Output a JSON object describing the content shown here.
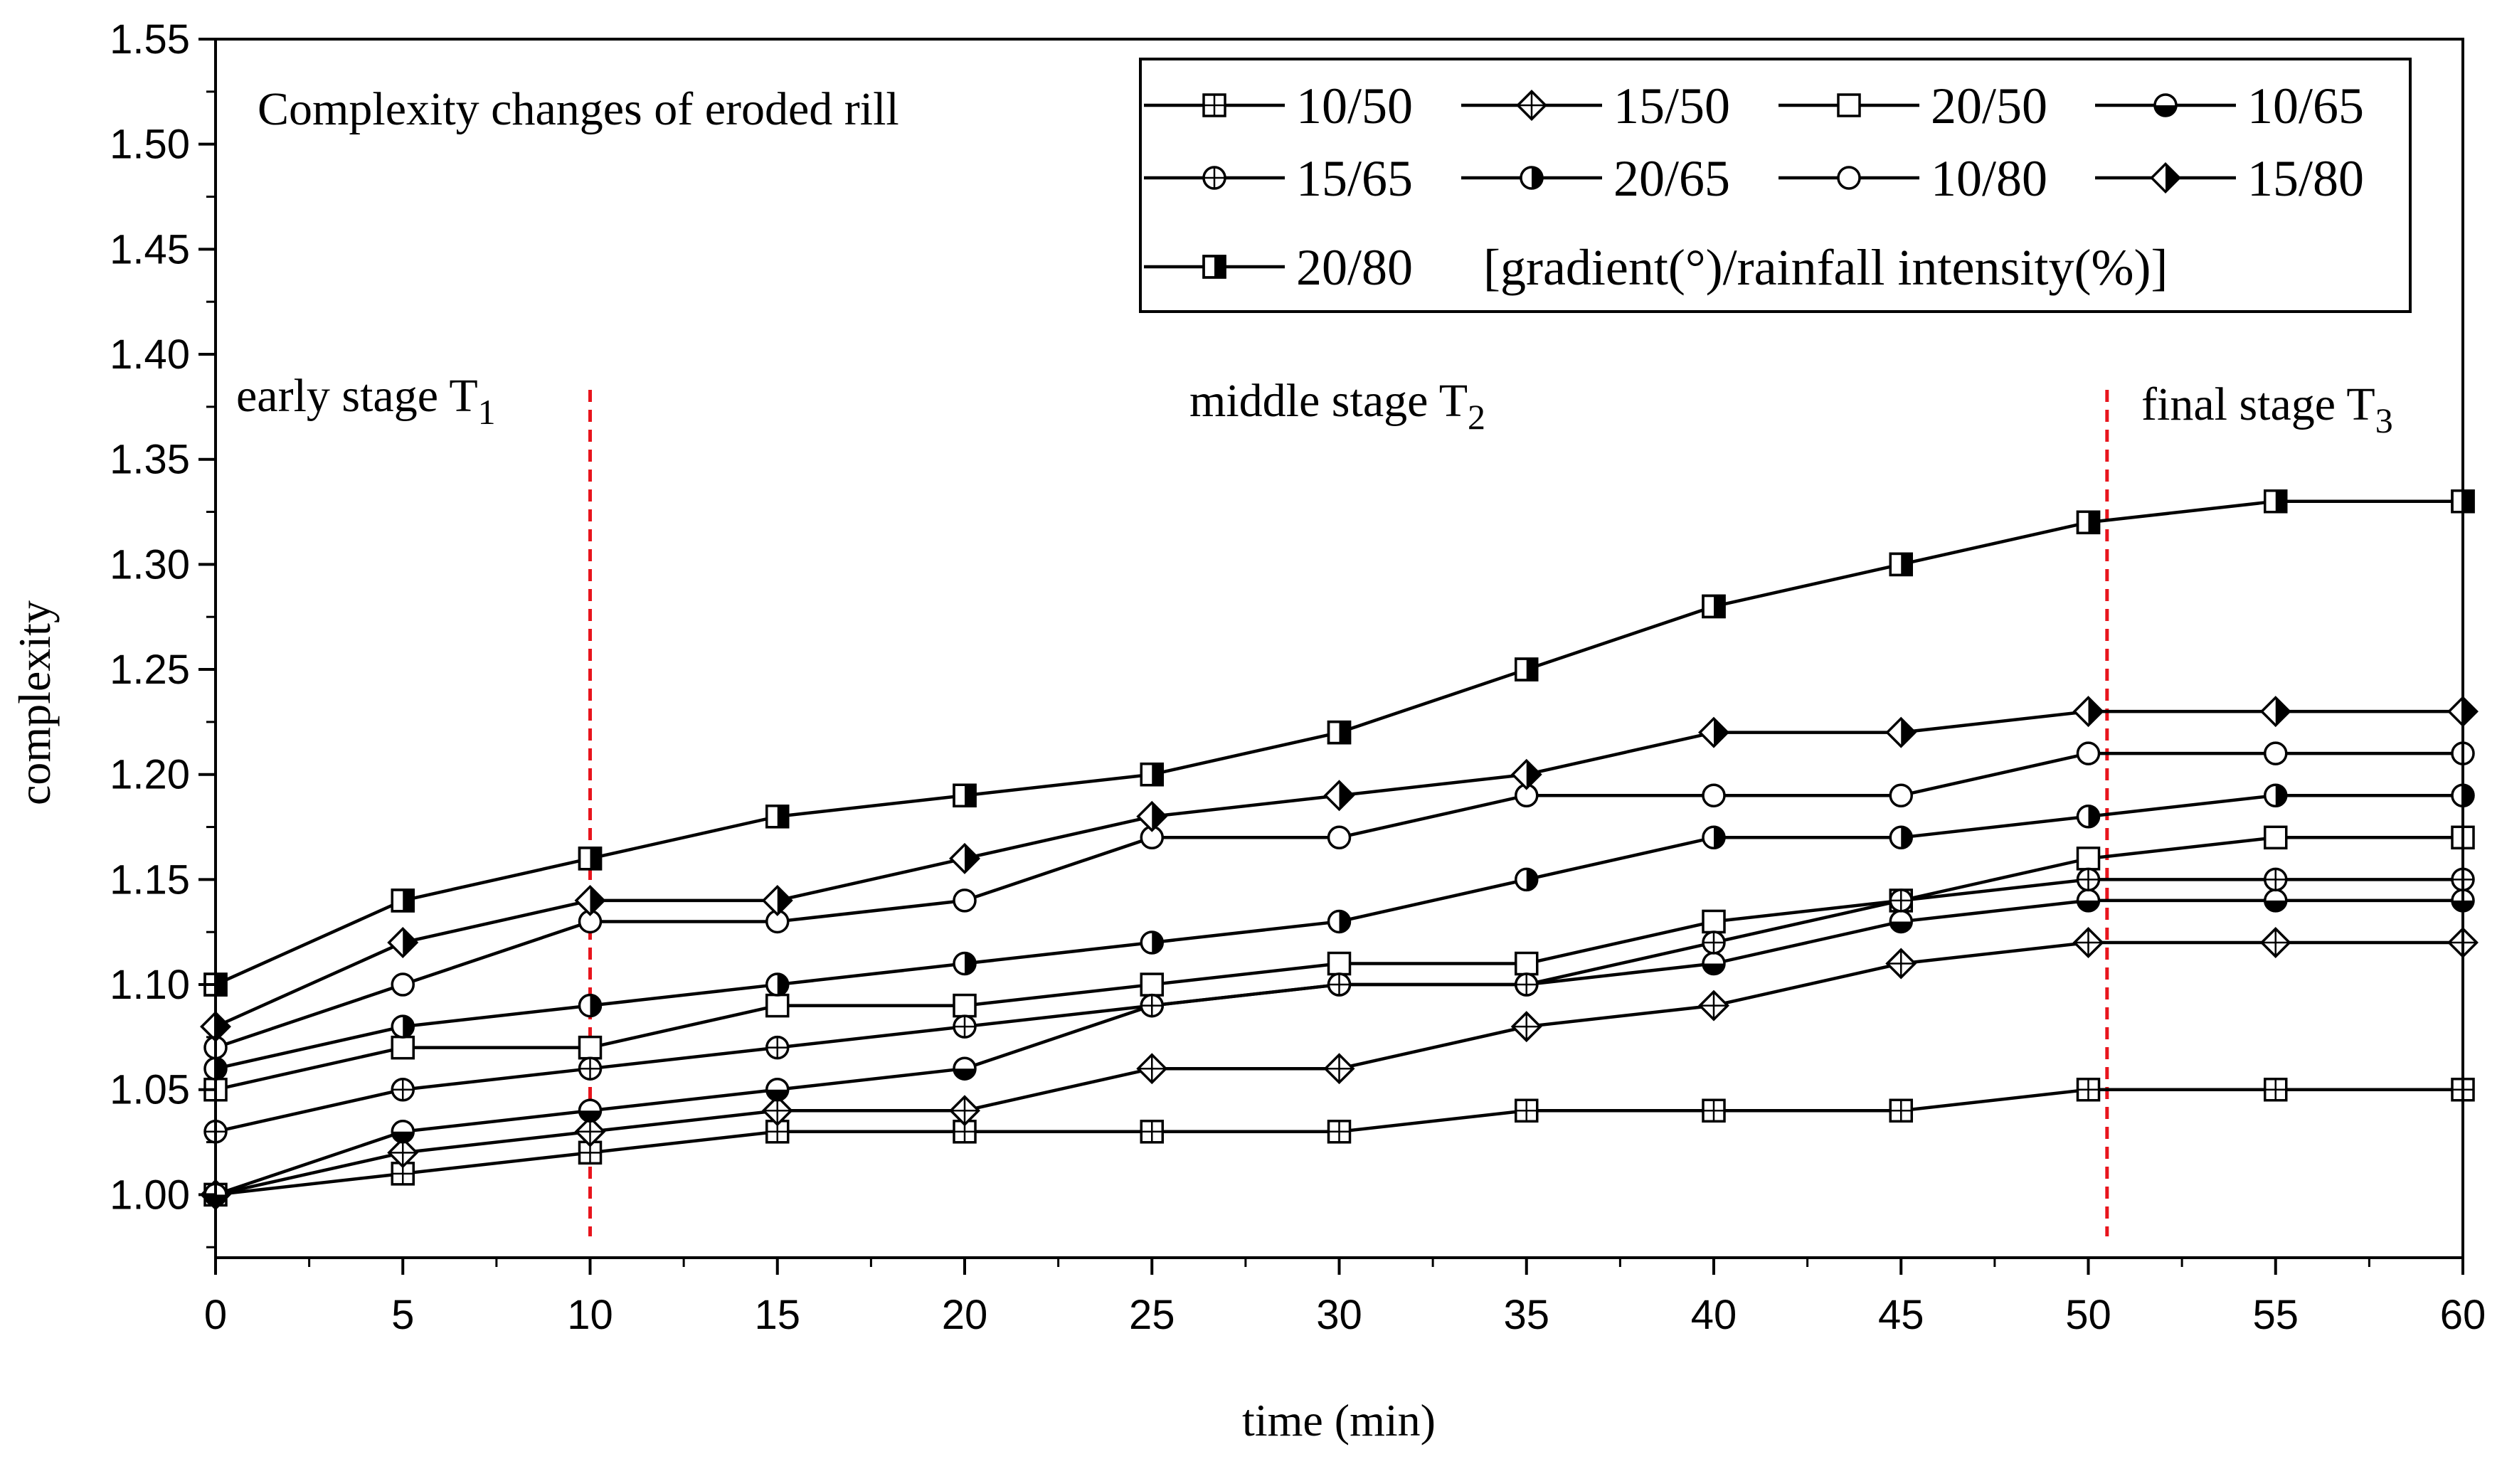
{
  "chart_data": {
    "type": "line",
    "title": "Complexity changes of eroded rill",
    "xlabel": "time (min)",
    "ylabel": "complexity",
    "xlim": [
      0,
      60
    ],
    "ylim": [
      0.97,
      1.55
    ],
    "x": [
      0,
      5,
      10,
      15,
      20,
      25,
      30,
      35,
      40,
      45,
      50,
      55,
      60
    ],
    "x_ticks": [
      0,
      5,
      10,
      15,
      20,
      25,
      30,
      35,
      40,
      45,
      50,
      55,
      60
    ],
    "x_tick_labels": [
      "0",
      "5",
      "10",
      "15",
      "20",
      "25",
      "30",
      "35",
      "40",
      "45",
      "50",
      "55",
      "60"
    ],
    "y_ticks": [
      1.0,
      1.05,
      1.1,
      1.15,
      1.2,
      1.25,
      1.3,
      1.35,
      1.4,
      1.45,
      1.5,
      1.55
    ],
    "y_tick_labels": [
      "1.00",
      "1.05",
      "1.10",
      "1.15",
      "1.20",
      "1.25",
      "1.30",
      "1.35",
      "1.40",
      "1.45",
      "1.50",
      "1.55"
    ],
    "legend_unit": "[gradient(°)/rainfall intensity(%)]",
    "stage_dividers": [
      10,
      50.5
    ],
    "divider_color": "#e8141c",
    "line_color": "#000000",
    "stages": [
      {
        "label": "early stage T",
        "subscript": "1"
      },
      {
        "label": "middle stage T",
        "subscript": "2"
      },
      {
        "label": "final stage T",
        "subscript": "3"
      }
    ],
    "series": [
      {
        "name": "10/50",
        "marker": "square-plus",
        "values": [
          1.0,
          1.01,
          1.02,
          1.03,
          1.03,
          1.03,
          1.03,
          1.04,
          1.04,
          1.04,
          1.05,
          1.05,
          1.05
        ]
      },
      {
        "name": "15/50",
        "marker": "diamond-plus",
        "values": [
          1.0,
          1.02,
          1.03,
          1.04,
          1.04,
          1.06,
          1.06,
          1.08,
          1.09,
          1.11,
          1.12,
          1.12,
          1.12
        ]
      },
      {
        "name": "20/50",
        "marker": "square-open",
        "values": [
          1.05,
          1.07,
          1.07,
          1.09,
          1.09,
          1.1,
          1.11,
          1.11,
          1.13,
          1.14,
          1.16,
          1.17,
          1.17
        ]
      },
      {
        "name": "10/65",
        "marker": "circle-half-bottom",
        "values": [
          1.0,
          1.03,
          1.04,
          1.05,
          1.06,
          1.09,
          1.1,
          1.1,
          1.11,
          1.13,
          1.14,
          1.14,
          1.14
        ]
      },
      {
        "name": "15/65",
        "marker": "circle-plus",
        "values": [
          1.03,
          1.05,
          1.06,
          1.07,
          1.08,
          1.09,
          1.1,
          1.1,
          1.12,
          1.14,
          1.15,
          1.15,
          1.15
        ]
      },
      {
        "name": "20/65",
        "marker": "circle-half-right",
        "values": [
          1.06,
          1.08,
          1.09,
          1.1,
          1.11,
          1.12,
          1.13,
          1.15,
          1.17,
          1.17,
          1.18,
          1.19,
          1.19
        ]
      },
      {
        "name": "10/80",
        "marker": "circle-open",
        "values": [
          1.07,
          1.1,
          1.13,
          1.13,
          1.14,
          1.17,
          1.17,
          1.19,
          1.19,
          1.19,
          1.21,
          1.21,
          1.21
        ]
      },
      {
        "name": "15/80",
        "marker": "diamond-half-right",
        "values": [
          1.08,
          1.12,
          1.14,
          1.14,
          1.16,
          1.18,
          1.19,
          1.2,
          1.22,
          1.22,
          1.23,
          1.23,
          1.23
        ]
      },
      {
        "name": "20/80",
        "marker": "square-half-right",
        "values": [
          1.1,
          1.14,
          1.16,
          1.18,
          1.19,
          1.2,
          1.22,
          1.25,
          1.28,
          1.3,
          1.32,
          1.33,
          1.33
        ]
      }
    ]
  }
}
